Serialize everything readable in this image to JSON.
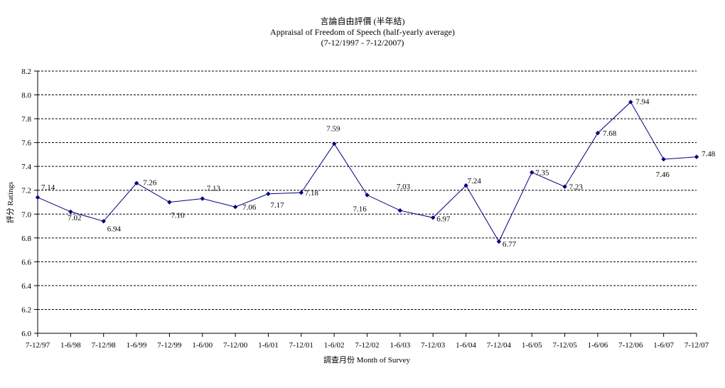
{
  "chart_data": {
    "type": "line",
    "title": "言論自由評價 (半年結)",
    "subtitle": "Appraisal of Freedom of Speech (half-yearly average)",
    "subtitle2": "(7-12/1997 - 7-12/2007)",
    "xlabel": "調查月份 Month of Survey",
    "ylabel": "評分 Ratings",
    "ylim": [
      6.0,
      8.2
    ],
    "ytick_step": 0.2,
    "yticks": [
      "6.0",
      "6.2",
      "6.4",
      "6.6",
      "6.8",
      "7.0",
      "7.2",
      "7.4",
      "7.6",
      "7.8",
      "8.0",
      "8.2"
    ],
    "grid": "horizontal-dashed",
    "line_color": "#000080",
    "categories": [
      "7-12/97",
      "1-6/98",
      "7-12/98",
      "1-6/99",
      "7-12/99",
      "1-6/00",
      "7-12/00",
      "1-6/01",
      "7-12/01",
      "1-6/02",
      "7-12/02",
      "1-6/03",
      "7-12/03",
      "1-6/04",
      "7-12/04",
      "1-6/05",
      "7-12/05",
      "1-6/06",
      "7-12/06",
      "1-6/07",
      "7-12/07"
    ],
    "values": [
      7.14,
      7.02,
      6.94,
      7.26,
      7.1,
      7.13,
      7.06,
      7.17,
      7.18,
      7.59,
      7.16,
      7.03,
      6.97,
      7.24,
      6.77,
      7.35,
      7.23,
      7.68,
      7.94,
      7.46,
      7.48
    ],
    "value_labels": [
      "7.14",
      "7.02",
      "6.94",
      "7.26",
      "7.10",
      "7.13",
      "7.06",
      "7.17",
      "7.18",
      "7.59",
      "7.16",
      "7.03",
      "6.97",
      "7.24",
      "6.77",
      "7.35",
      "7.23",
      "7.68",
      "7.94",
      "7.46",
      "7.48"
    ]
  }
}
